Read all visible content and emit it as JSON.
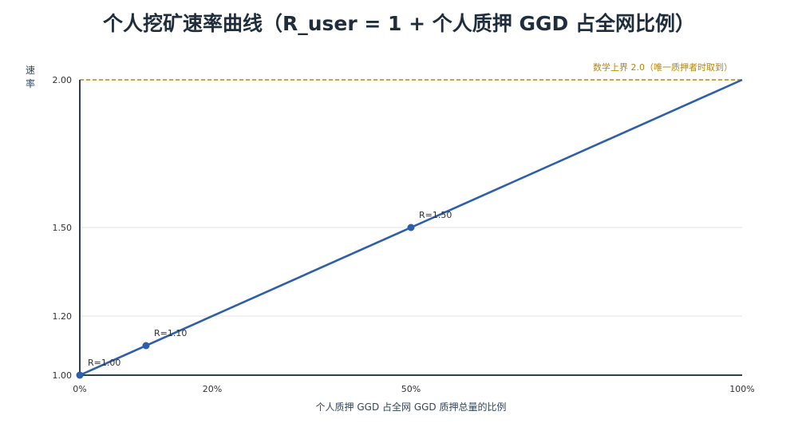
{
  "chart_data": {
    "type": "line",
    "title": "个人挖矿速率曲线（R_user = 1 + 个人质押 GGD 占全网比例）",
    "xlabel": "个人质押 GGD 占全网 GGD 质押总量的比例",
    "ylabel": "速率",
    "xlim": [
      0,
      1
    ],
    "ylim": [
      1.0,
      2.0
    ],
    "x_ticks": [
      {
        "value": 0,
        "label": "0%"
      },
      {
        "value": 0.2,
        "label": "20%"
      },
      {
        "value": 0.5,
        "label": "50%"
      },
      {
        "value": 1.0,
        "label": "100%"
      }
    ],
    "y_ticks": [
      {
        "value": 1.0,
        "label": "1.00"
      },
      {
        "value": 1.2,
        "label": "1.20"
      },
      {
        "value": 1.5,
        "label": "1.50"
      },
      {
        "value": 2.0,
        "label": "2.00"
      }
    ],
    "series": [
      {
        "x": [
          0,
          1.0
        ],
        "y": [
          1.0,
          2.0
        ],
        "color": "#2f5eaa"
      }
    ],
    "points": [
      {
        "x": 0,
        "y": 1.0,
        "label": "R=1.00"
      },
      {
        "x": 0.1,
        "y": 1.1,
        "label": "R=1.10"
      },
      {
        "x": 0.5,
        "y": 1.5,
        "label": "R=1.50"
      }
    ],
    "reference_line": {
      "y": 2.0,
      "label": "数学上界 2.0（唯一质押者时取到）",
      "color": "#b8860b",
      "style": "dashed"
    },
    "grid": true,
    "colors": {
      "line": "#2f5eaa",
      "axis": "#2c3e50",
      "grid": "#e3e3e3",
      "reference": "#b8860b"
    }
  }
}
